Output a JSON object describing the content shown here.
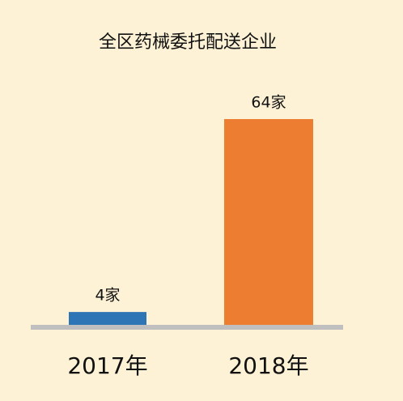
{
  "chart_data": {
    "type": "bar",
    "title": "全区药械委托配送企业",
    "categories": [
      "2017年",
      "2018年"
    ],
    "values": [
      4,
      64
    ],
    "value_labels": [
      "4家",
      "64家"
    ],
    "colors": [
      "#2e75b6",
      "#ed7d31"
    ]
  }
}
